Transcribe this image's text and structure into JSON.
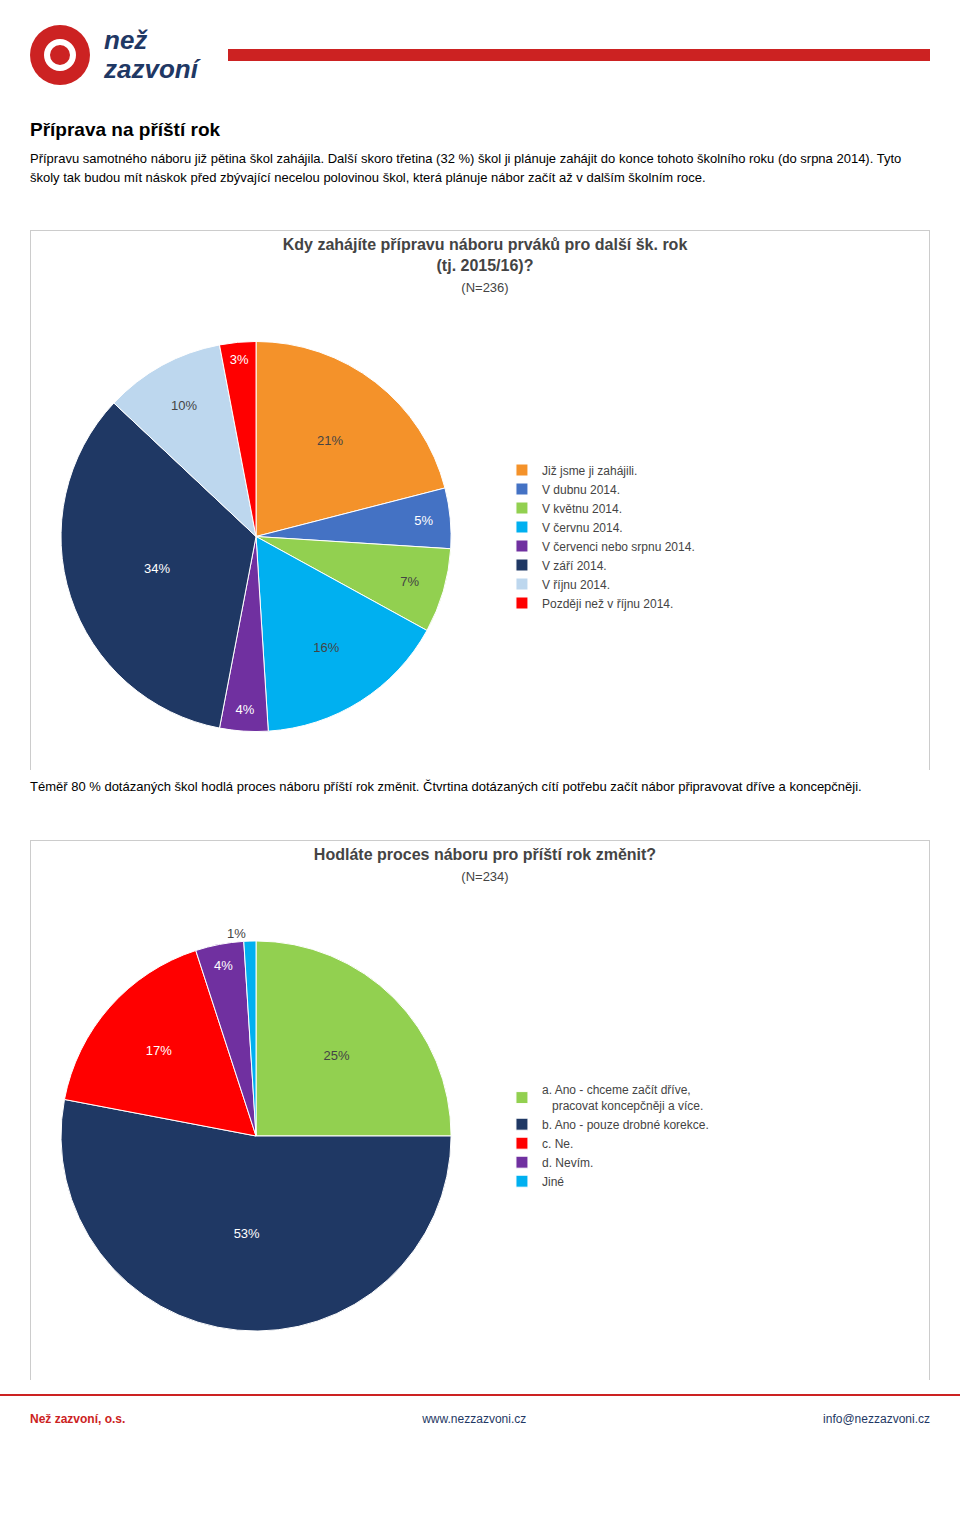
{
  "chart_data": [
    {
      "type": "pie",
      "title": "Kdy zahájíte přípravu náboru prváků pro další šk. rok\n(tj. 2015/16)?",
      "subtitle": "(N=236)",
      "categories": [
        "Již jsme ji zahájili.",
        "V dubnu 2014.",
        "V květnu 2014.",
        "V červnu 2014.",
        "V červenci nebo srpnu 2014.",
        "V září 2014.",
        "V říjnu 2014.",
        "Později než v říjnu 2014."
      ],
      "values": [
        21,
        5,
        7,
        16,
        4,
        34,
        10,
        3
      ],
      "value_labels": [
        "21%",
        "5%",
        "7%",
        "16%",
        "4%",
        "34%",
        "10%",
        "3%"
      ],
      "colors": [
        "#F4922A",
        "#4472C4",
        "#92D050",
        "#00B0F0",
        "#7030A0",
        "#1F3864",
        "#BDD7EE",
        "#FF0000"
      ],
      "data_labels": true,
      "legend": "right",
      "annotations": [
        "než",
        "zazvoní",
        "Příprava na příští rok",
        "Přípravu samotného náboru již pětina škol zahájila. Další skoro třetina (32 %) škol ji plánuje zahájit do konce tohoto školního roku (do srpna 2014). Tyto školy tak budou mít náskok před zbývající necelou polovinou škol, která plánuje nábor začít až v dalším školním roce."
      ]
    },
    {
      "type": "pie",
      "title": "Hodláte proces náboru pro příští rok změnit?",
      "subtitle": "(N=234)",
      "categories": [
        "a. Ano - chceme začít dříve,\n   pracovat koncepčněji a více.",
        "b. Ano - pouze drobné korekce.",
        "c. Ne.",
        "d. Nevím.",
        "Jiné"
      ],
      "values": [
        25,
        53,
        17,
        4,
        1
      ],
      "value_labels": [
        "25%",
        "53%",
        "17%",
        "4%",
        "1%"
      ],
      "colors": [
        "#92D050",
        "#1F3864",
        "#FF0000",
        "#7030A0",
        "#00B0F0"
      ],
      "data_labels": true,
      "legend": "right",
      "annotations": [
        "Téměř 80 % dotázaných škol hodlá proces náboru příští rok změnit. Čtvrtina dotázaných cítí potřebu začít nábor připravovat dříve a koncepčněji.",
        "Než zazvoní, o.s.",
        "www.nezzazvoni.cz",
        "info@nezzazvoni.cz"
      ]
    }
  ]
}
